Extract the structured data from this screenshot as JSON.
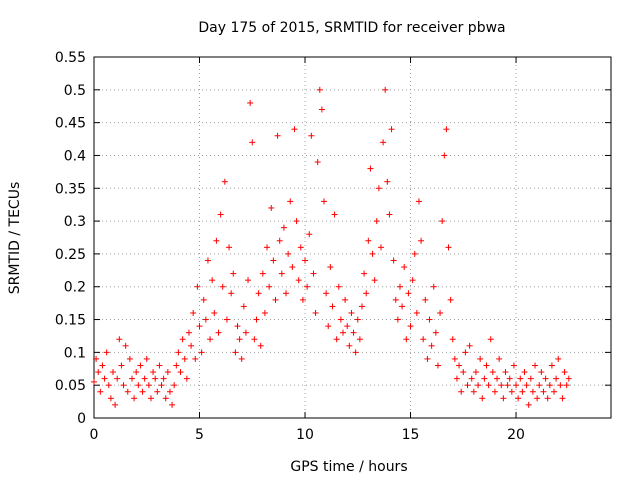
{
  "chart_data": {
    "type": "scatter",
    "title": "Day 175 of 2015, SRMTID for receiver pbwa",
    "xlabel": "GPS time / hours",
    "ylabel": "SRMTID / TECUs",
    "xlim": [
      0,
      24.5
    ],
    "ylim": [
      0,
      0.55
    ],
    "xticks": [
      0,
      5,
      10,
      15,
      20
    ],
    "xtick_labels": [
      "0",
      "5",
      "10",
      "15",
      "20"
    ],
    "yticks": [
      0,
      0.05,
      0.1,
      0.15,
      0.2,
      0.25,
      0.3,
      0.35,
      0.4,
      0.45,
      0.5,
      0.55
    ],
    "ytick_labels": [
      "0",
      "0.05",
      "0.1",
      "0.15",
      "0.2",
      "0.25",
      "0.3",
      "0.35",
      "0.4",
      "0.45",
      "0.5",
      "0.55"
    ],
    "grid": true,
    "legend": "none",
    "marker": "+",
    "color": "#ff0000",
    "series": [
      {
        "name": "SRMTID",
        "points": [
          [
            0.0,
            0.055
          ],
          [
            0.1,
            0.09
          ],
          [
            0.2,
            0.07
          ],
          [
            0.3,
            0.04
          ],
          [
            0.4,
            0.08
          ],
          [
            0.5,
            0.06
          ],
          [
            0.6,
            0.1
          ],
          [
            0.7,
            0.05
          ],
          [
            0.8,
            0.03
          ],
          [
            0.9,
            0.07
          ],
          [
            1.0,
            0.02
          ],
          [
            1.1,
            0.06
          ],
          [
            1.2,
            0.12
          ],
          [
            1.3,
            0.08
          ],
          [
            1.4,
            0.05
          ],
          [
            1.5,
            0.11
          ],
          [
            1.6,
            0.04
          ],
          [
            1.7,
            0.09
          ],
          [
            1.8,
            0.06
          ],
          [
            1.9,
            0.03
          ],
          [
            2.0,
            0.07
          ],
          [
            2.1,
            0.05
          ],
          [
            2.2,
            0.08
          ],
          [
            2.3,
            0.04
          ],
          [
            2.4,
            0.06
          ],
          [
            2.5,
            0.09
          ],
          [
            2.6,
            0.05
          ],
          [
            2.7,
            0.03
          ],
          [
            2.8,
            0.07
          ],
          [
            2.9,
            0.06
          ],
          [
            3.0,
            0.04
          ],
          [
            3.1,
            0.08
          ],
          [
            3.2,
            0.05
          ],
          [
            3.3,
            0.06
          ],
          [
            3.4,
            0.03
          ],
          [
            3.5,
            0.07
          ],
          [
            3.6,
            0.04
          ],
          [
            3.7,
            0.02
          ],
          [
            3.8,
            0.05
          ],
          [
            3.9,
            0.08
          ],
          [
            4.0,
            0.1
          ],
          [
            4.1,
            0.07
          ],
          [
            4.2,
            0.12
          ],
          [
            4.3,
            0.09
          ],
          [
            4.4,
            0.06
          ],
          [
            4.5,
            0.13
          ],
          [
            4.6,
            0.11
          ],
          [
            4.7,
            0.16
          ],
          [
            4.8,
            0.09
          ],
          [
            4.9,
            0.2
          ],
          [
            5.0,
            0.14
          ],
          [
            5.1,
            0.1
          ],
          [
            5.2,
            0.18
          ],
          [
            5.3,
            0.15
          ],
          [
            5.4,
            0.24
          ],
          [
            5.5,
            0.12
          ],
          [
            5.6,
            0.21
          ],
          [
            5.7,
            0.16
          ],
          [
            5.8,
            0.27
          ],
          [
            5.9,
            0.13
          ],
          [
            6.0,
            0.31
          ],
          [
            6.1,
            0.2
          ],
          [
            6.2,
            0.36
          ],
          [
            6.3,
            0.15
          ],
          [
            6.4,
            0.26
          ],
          [
            6.5,
            0.19
          ],
          [
            6.6,
            0.22
          ],
          [
            6.7,
            0.1
          ],
          [
            6.8,
            0.14
          ],
          [
            6.9,
            0.12
          ],
          [
            7.0,
            0.09
          ],
          [
            7.1,
            0.17
          ],
          [
            7.2,
            0.13
          ],
          [
            7.3,
            0.21
          ],
          [
            7.4,
            0.48
          ],
          [
            7.5,
            0.42
          ],
          [
            7.6,
            0.12
          ],
          [
            7.7,
            0.15
          ],
          [
            7.8,
            0.19
          ],
          [
            7.9,
            0.11
          ],
          [
            8.0,
            0.22
          ],
          [
            8.1,
            0.16
          ],
          [
            8.2,
            0.26
          ],
          [
            8.3,
            0.2
          ],
          [
            8.4,
            0.32
          ],
          [
            8.5,
            0.24
          ],
          [
            8.6,
            0.18
          ],
          [
            8.7,
            0.43
          ],
          [
            8.8,
            0.27
          ],
          [
            8.9,
            0.22
          ],
          [
            9.0,
            0.29
          ],
          [
            9.1,
            0.19
          ],
          [
            9.2,
            0.25
          ],
          [
            9.3,
            0.33
          ],
          [
            9.4,
            0.23
          ],
          [
            9.5,
            0.44
          ],
          [
            9.6,
            0.3
          ],
          [
            9.7,
            0.21
          ],
          [
            9.8,
            0.26
          ],
          [
            9.9,
            0.18
          ],
          [
            10.0,
            0.24
          ],
          [
            10.1,
            0.2
          ],
          [
            10.2,
            0.28
          ],
          [
            10.3,
            0.43
          ],
          [
            10.4,
            0.22
          ],
          [
            10.5,
            0.16
          ],
          [
            10.6,
            0.39
          ],
          [
            10.7,
            0.5
          ],
          [
            10.8,
            0.47
          ],
          [
            10.9,
            0.33
          ],
          [
            11.0,
            0.19
          ],
          [
            11.1,
            0.14
          ],
          [
            11.2,
            0.23
          ],
          [
            11.3,
            0.17
          ],
          [
            11.4,
            0.31
          ],
          [
            11.5,
            0.12
          ],
          [
            11.6,
            0.2
          ],
          [
            11.7,
            0.15
          ],
          [
            11.8,
            0.13
          ],
          [
            11.9,
            0.18
          ],
          [
            12.0,
            0.14
          ],
          [
            12.1,
            0.11
          ],
          [
            12.2,
            0.16
          ],
          [
            12.3,
            0.13
          ],
          [
            12.4,
            0.1
          ],
          [
            12.5,
            0.15
          ],
          [
            12.6,
            0.12
          ],
          [
            12.7,
            0.17
          ],
          [
            12.8,
            0.22
          ],
          [
            12.9,
            0.19
          ],
          [
            13.0,
            0.27
          ],
          [
            13.1,
            0.38
          ],
          [
            13.2,
            0.25
          ],
          [
            13.3,
            0.21
          ],
          [
            13.4,
            0.3
          ],
          [
            13.5,
            0.35
          ],
          [
            13.6,
            0.26
          ],
          [
            13.7,
            0.42
          ],
          [
            13.8,
            0.5
          ],
          [
            13.9,
            0.36
          ],
          [
            14.0,
            0.31
          ],
          [
            14.1,
            0.44
          ],
          [
            14.2,
            0.24
          ],
          [
            14.3,
            0.18
          ],
          [
            14.4,
            0.15
          ],
          [
            14.5,
            0.2
          ],
          [
            14.6,
            0.17
          ],
          [
            14.7,
            0.23
          ],
          [
            14.8,
            0.12
          ],
          [
            14.9,
            0.19
          ],
          [
            15.0,
            0.14
          ],
          [
            15.1,
            0.21
          ],
          [
            15.2,
            0.25
          ],
          [
            15.3,
            0.16
          ],
          [
            15.4,
            0.33
          ],
          [
            15.5,
            0.27
          ],
          [
            15.6,
            0.12
          ],
          [
            15.7,
            0.18
          ],
          [
            15.8,
            0.09
          ],
          [
            15.9,
            0.15
          ],
          [
            16.0,
            0.11
          ],
          [
            16.1,
            0.2
          ],
          [
            16.2,
            0.13
          ],
          [
            16.3,
            0.08
          ],
          [
            16.4,
            0.16
          ],
          [
            16.5,
            0.3
          ],
          [
            16.6,
            0.4
          ],
          [
            16.7,
            0.44
          ],
          [
            16.8,
            0.26
          ],
          [
            16.9,
            0.18
          ],
          [
            17.0,
            0.12
          ],
          [
            17.1,
            0.09
          ],
          [
            17.2,
            0.06
          ],
          [
            17.3,
            0.08
          ],
          [
            17.4,
            0.04
          ],
          [
            17.5,
            0.07
          ],
          [
            17.6,
            0.1
          ],
          [
            17.7,
            0.05
          ],
          [
            17.8,
            0.11
          ],
          [
            17.9,
            0.06
          ],
          [
            18.0,
            0.04
          ],
          [
            18.1,
            0.07
          ],
          [
            18.2,
            0.05
          ],
          [
            18.3,
            0.09
          ],
          [
            18.4,
            0.03
          ],
          [
            18.5,
            0.06
          ],
          [
            18.6,
            0.08
          ],
          [
            18.7,
            0.05
          ],
          [
            18.8,
            0.12
          ],
          [
            18.9,
            0.07
          ],
          [
            19.0,
            0.04
          ],
          [
            19.1,
            0.06
          ],
          [
            19.2,
            0.09
          ],
          [
            19.3,
            0.05
          ],
          [
            19.4,
            0.03
          ],
          [
            19.5,
            0.07
          ],
          [
            19.6,
            0.05
          ],
          [
            19.7,
            0.06
          ],
          [
            19.8,
            0.04
          ],
          [
            19.9,
            0.08
          ],
          [
            20.0,
            0.05
          ],
          [
            20.1,
            0.03
          ],
          [
            20.2,
            0.06
          ],
          [
            20.3,
            0.04
          ],
          [
            20.4,
            0.07
          ],
          [
            20.5,
            0.05
          ],
          [
            20.6,
            0.02
          ],
          [
            20.7,
            0.06
          ],
          [
            20.8,
            0.04
          ],
          [
            20.9,
            0.08
          ],
          [
            21.0,
            0.03
          ],
          [
            21.1,
            0.05
          ],
          [
            21.2,
            0.07
          ],
          [
            21.3,
            0.04
          ],
          [
            21.4,
            0.06
          ],
          [
            21.5,
            0.03
          ],
          [
            21.6,
            0.05
          ],
          [
            21.7,
            0.08
          ],
          [
            21.8,
            0.04
          ],
          [
            21.9,
            0.06
          ],
          [
            22.0,
            0.09
          ],
          [
            22.1,
            0.05
          ],
          [
            22.2,
            0.03
          ],
          [
            22.3,
            0.07
          ],
          [
            22.4,
            0.05
          ],
          [
            22.5,
            0.06
          ]
        ]
      }
    ]
  }
}
